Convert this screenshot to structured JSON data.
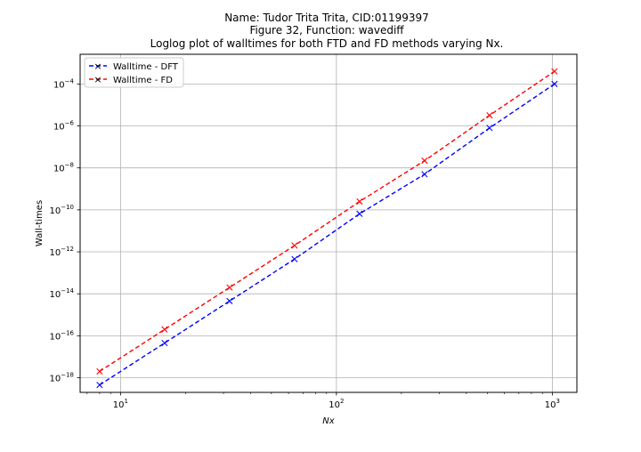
{
  "chart_data": {
    "type": "line",
    "title_lines": [
      "Name: Tudor Trita Trita, CID:01199397",
      "Figure 32, Function: wavediff",
      "Loglog plot of walltimes for both FTD and FD methods varying Nx."
    ],
    "xlabel": "Nx",
    "ylabel": "Wall-times",
    "xscale": "log",
    "yscale": "log",
    "xlim": [
      6.5,
      1300
    ],
    "ylim": [
      2e-19,
      0.0026
    ],
    "grid": true,
    "legend_position": "top-left",
    "x": [
      8,
      16,
      32,
      64,
      128,
      256,
      512,
      1024
    ],
    "series": [
      {
        "name": "Walltime - DFT",
        "color": "#0000ff",
        "marker": "x",
        "linestyle": "dashed",
        "values": [
          4.5e-19,
          4.5e-17,
          4.5e-15,
          4.5e-13,
          6.5e-11,
          5e-09,
          8e-07,
          0.0001
        ]
      },
      {
        "name": "Walltime - FD",
        "color": "#ff0000",
        "marker": "x",
        "linestyle": "dashed",
        "values": [
          2e-18,
          2e-16,
          2e-14,
          2e-12,
          2.5e-10,
          2.2e-08,
          3.2e-06,
          0.0004
        ]
      }
    ],
    "x_ticks": [
      {
        "value": 10,
        "base": "10",
        "exp": "1"
      },
      {
        "value": 100,
        "base": "10",
        "exp": "2"
      },
      {
        "value": 1000,
        "base": "10",
        "exp": "3"
      }
    ],
    "y_ticks": [
      {
        "value": 1e-18,
        "base": "10",
        "exp": "−18"
      },
      {
        "value": 1e-16,
        "base": "10",
        "exp": "−16"
      },
      {
        "value": 1e-14,
        "base": "10",
        "exp": "−14"
      },
      {
        "value": 1e-12,
        "base": "10",
        "exp": "−12"
      },
      {
        "value": 1e-10,
        "base": "10",
        "exp": "−10"
      },
      {
        "value": 1e-08,
        "base": "10",
        "exp": "−8"
      },
      {
        "value": 1e-06,
        "base": "10",
        "exp": "−6"
      },
      {
        "value": 0.0001,
        "base": "10",
        "exp": "−4"
      }
    ]
  }
}
